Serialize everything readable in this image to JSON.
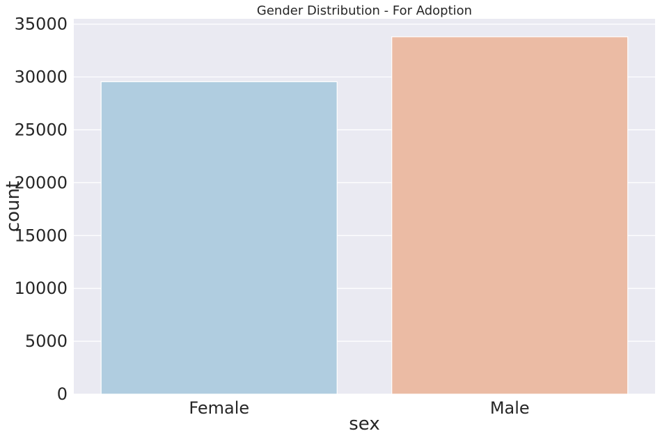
{
  "chart_data": {
    "type": "bar",
    "title": "Gender Distribution - For Adoption",
    "xlabel": "sex",
    "ylabel": "count",
    "categories": [
      "Female",
      "Male"
    ],
    "values": [
      29550,
      33800
    ],
    "colors": [
      "#b0cde0",
      "#ebbba4"
    ],
    "ylim": [
      0,
      35500
    ],
    "yticks": [
      0,
      5000,
      10000,
      15000,
      20000,
      25000,
      30000,
      35000
    ],
    "grid": true,
    "plot_background": "#eaeaf2"
  }
}
